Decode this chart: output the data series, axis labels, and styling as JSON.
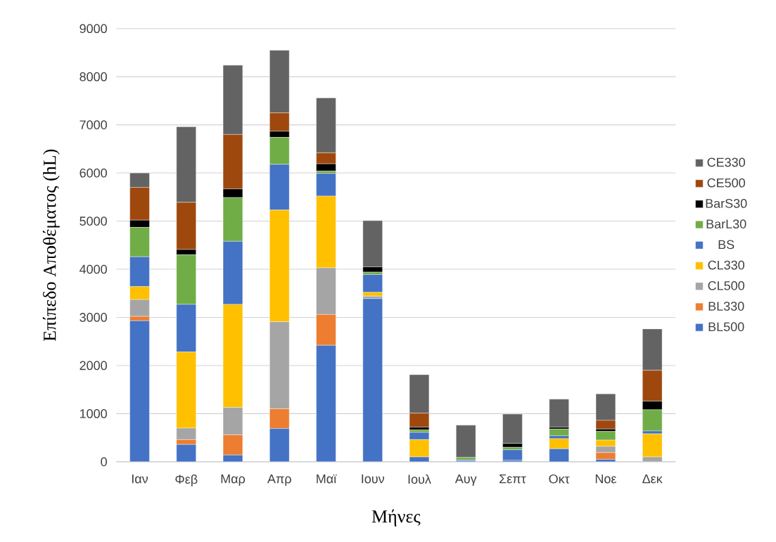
{
  "chart_data": {
    "type": "bar",
    "stacked": true,
    "xlabel": "Μήνες",
    "ylabel": "Επίπεδο Αποθέματος (hL)",
    "categories": [
      "Ιαν",
      "Φεβ",
      "Μαρ",
      "Απρ",
      "Μαϊ",
      "Ιουν",
      "Ιουλ",
      "Αυγ",
      "Σεπτ",
      "Οκτ",
      "Νοε",
      "Δεκ"
    ],
    "ylim": [
      0,
      9000
    ],
    "yticks": [
      0,
      1000,
      2000,
      3000,
      4000,
      5000,
      6000,
      7000,
      8000,
      9000
    ],
    "grid": "y",
    "legend": "right",
    "series": [
      {
        "name": "BL500",
        "color": "#4472c4",
        "values": [
          2930,
          360,
          140,
          690,
          2420,
          3390,
          100,
          20,
          30,
          270,
          50,
          0
        ]
      },
      {
        "name": "BL330",
        "color": "#ed7d31",
        "values": [
          90,
          100,
          420,
          410,
          640,
          0,
          0,
          0,
          0,
          0,
          140,
          0
        ]
      },
      {
        "name": "CL500",
        "color": "#a5a5a5",
        "values": [
          350,
          240,
          570,
          1810,
          970,
          50,
          0,
          0,
          0,
          0,
          130,
          100
        ]
      },
      {
        "name": "CL330",
        "color": "#ffc000",
        "values": [
          270,
          1580,
          2140,
          2320,
          1490,
          80,
          360,
          0,
          0,
          210,
          130,
          480
        ]
      },
      {
        "name": "BS",
        "color": "#4472c4",
        "values": [
          620,
          990,
          1310,
          950,
          470,
          370,
          150,
          20,
          220,
          60,
          0,
          60
        ]
      },
      {
        "name": "BarL30",
        "color": "#70ad47",
        "values": [
          610,
          1030,
          910,
          560,
          50,
          50,
          50,
          50,
          50,
          140,
          180,
          440
        ]
      },
      {
        "name": "BarS30",
        "color": "#000000",
        "values": [
          150,
          110,
          180,
          130,
          150,
          110,
          60,
          0,
          80,
          40,
          50,
          180
        ]
      },
      {
        "name": "CE500",
        "color": "#9e480e",
        "values": [
          680,
          980,
          1130,
          380,
          230,
          0,
          290,
          0,
          0,
          0,
          180,
          640
        ]
      },
      {
        "name": "CE330",
        "color": "#636363",
        "values": [
          300,
          1570,
          1440,
          1300,
          1140,
          960,
          800,
          670,
          610,
          580,
          550,
          860
        ]
      }
    ]
  }
}
